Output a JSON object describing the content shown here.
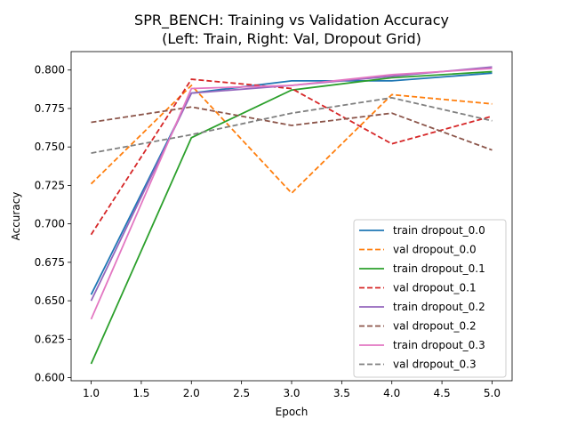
{
  "chart_data": {
    "type": "line",
    "title": "SPR_BENCH: Training vs Validation Accuracy",
    "subtitle": "(Left: Train, Right: Val, Dropout Grid)",
    "xlabel": "Epoch",
    "ylabel": "Accuracy",
    "xlim": [
      0.8,
      5.2
    ],
    "ylim": [
      0.598,
      0.812
    ],
    "xticks": [
      "1.0",
      "1.5",
      "2.0",
      "2.5",
      "3.0",
      "3.5",
      "4.0",
      "4.5",
      "5.0"
    ],
    "yticks": [
      "0.600",
      "0.625",
      "0.650",
      "0.675",
      "0.700",
      "0.725",
      "0.750",
      "0.775",
      "0.800"
    ],
    "x": [
      1,
      2,
      3,
      4,
      5
    ],
    "legend_position": "lower-right",
    "grid": false,
    "series": [
      {
        "name": "train dropout_0.0",
        "values": [
          0.654,
          0.785,
          0.793,
          0.793,
          0.798
        ],
        "color": "#1f77b4",
        "dashed": false
      },
      {
        "name": "val dropout_0.0",
        "values": [
          0.726,
          0.79,
          0.72,
          0.784,
          0.778
        ],
        "color": "#ff7f0e",
        "dashed": true
      },
      {
        "name": "train dropout_0.1",
        "values": [
          0.609,
          0.756,
          0.787,
          0.795,
          0.799
        ],
        "color": "#2ca02c",
        "dashed": false
      },
      {
        "name": "val dropout_0.1",
        "values": [
          0.693,
          0.794,
          0.788,
          0.752,
          0.77
        ],
        "color": "#d62728",
        "dashed": true
      },
      {
        "name": "train dropout_0.2",
        "values": [
          0.65,
          0.785,
          0.79,
          0.796,
          0.802
        ],
        "color": "#9467bd",
        "dashed": false
      },
      {
        "name": "val dropout_0.2",
        "values": [
          0.766,
          0.776,
          0.764,
          0.772,
          0.748
        ],
        "color": "#8c564b",
        "dashed": true
      },
      {
        "name": "train dropout_0.3",
        "values": [
          0.638,
          0.788,
          0.79,
          0.797,
          0.801
        ],
        "color": "#e377c2",
        "dashed": false
      },
      {
        "name": "val dropout_0.3",
        "values": [
          0.746,
          0.758,
          0.772,
          0.782,
          0.767
        ],
        "color": "#7f7f7f",
        "dashed": true
      }
    ]
  }
}
